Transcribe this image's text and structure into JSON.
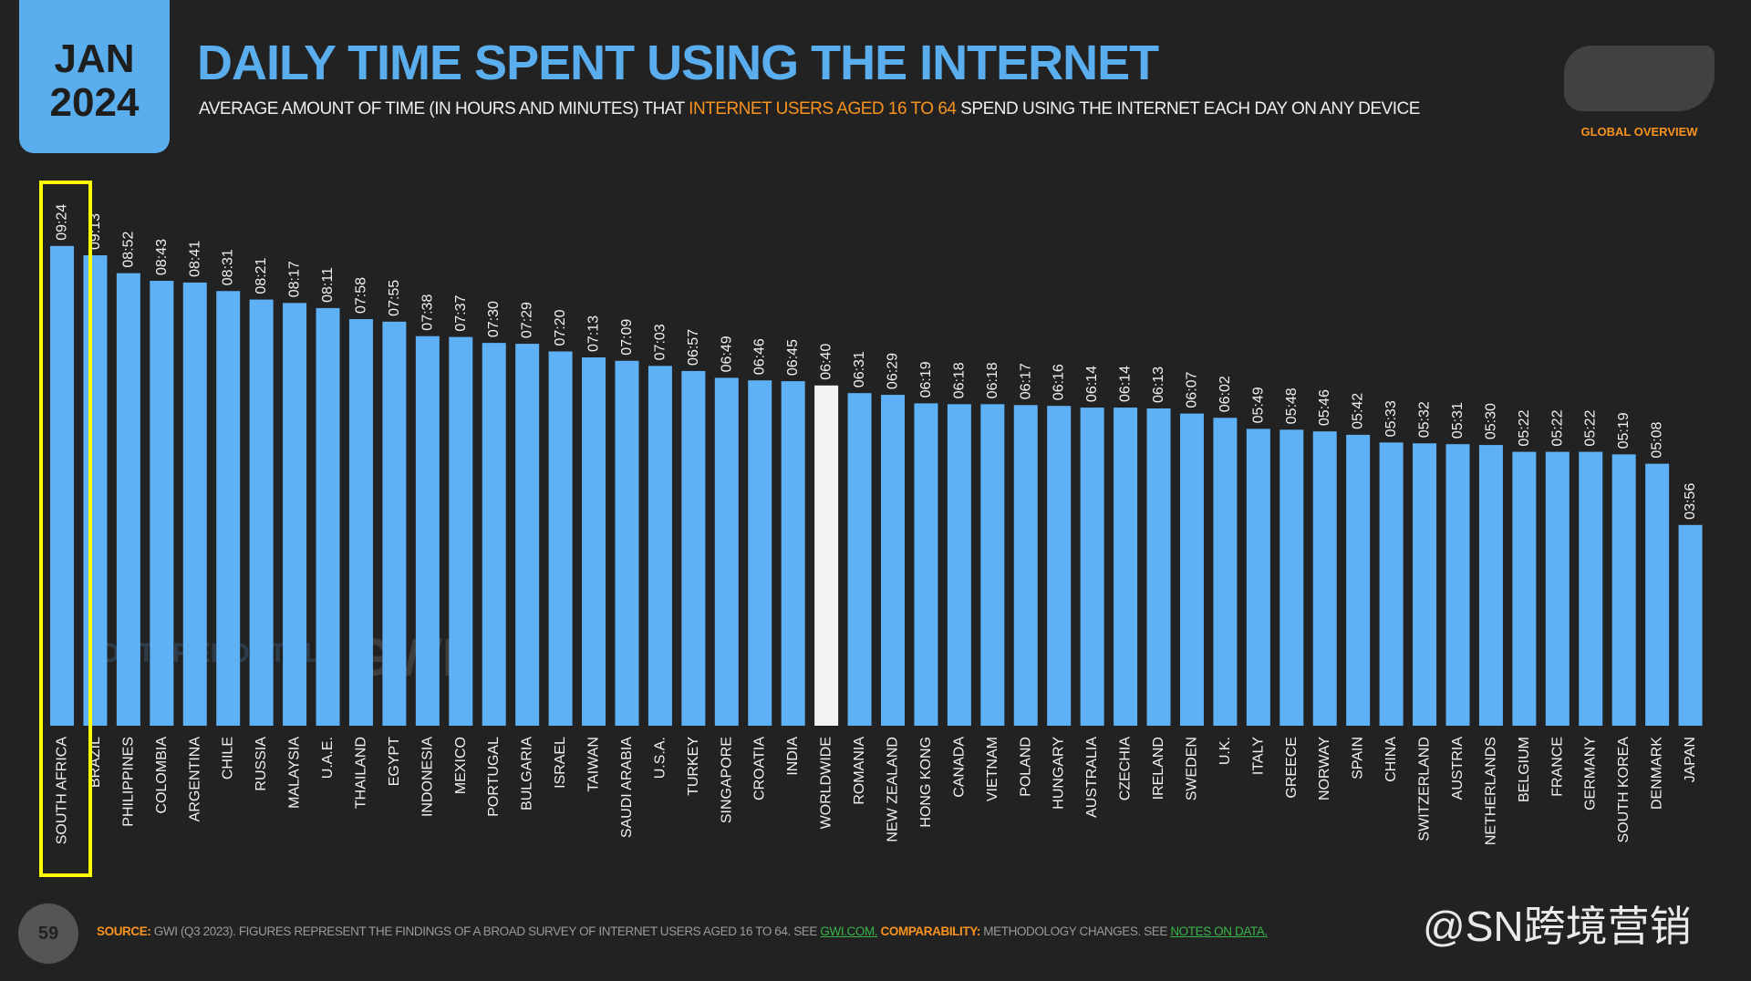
{
  "header": {
    "month": "JAN",
    "year": "2024",
    "corner_label": "GLOBAL OVERVIEW"
  },
  "chart_data": {
    "type": "bar",
    "title": "DAILY TIME SPENT USING THE INTERNET",
    "subtitle": [
      "AVERAGE AMOUNT OF TIME (IN HOURS AND MINUTES) THAT ",
      "INTERNET USERS AGED 16 TO 64",
      " SPEND USING THE INTERNET EACH DAY ON ANY DEVICE"
    ],
    "categories": [
      "SOUTH AFRICA",
      "BRAZIL",
      "PHILIPPINES",
      "COLOMBIA",
      "ARGENTINA",
      "CHILE",
      "RUSSIA",
      "MALAYSIA",
      "U.A.E.",
      "THAILAND",
      "EGYPT",
      "INDONESIA",
      "MEXICO",
      "PORTUGAL",
      "BULGARIA",
      "ISRAEL",
      "TAIWAN",
      "SAUDI ARABIA",
      "U.S.A.",
      "TURKEY",
      "SINGAPORE",
      "CROATIA",
      "INDIA",
      "WORLDWIDE",
      "ROMANIA",
      "NEW ZEALAND",
      "HONG KONG",
      "CANADA",
      "VIETNAM",
      "POLAND",
      "HUNGARY",
      "AUSTRALIA",
      "CZECHIA",
      "IRELAND",
      "SWEDEN",
      "U.K.",
      "ITALY",
      "GREECE",
      "NORWAY",
      "SPAIN",
      "CHINA",
      "SWITZERLAND",
      "AUSTRIA",
      "NETHERLANDS",
      "BELGIUM",
      "FRANCE",
      "GERMANY",
      "SOUTH KOREA",
      "DENMARK",
      "JAPAN"
    ],
    "values": [
      564,
      553,
      532,
      523,
      521,
      511,
      501,
      497,
      491,
      478,
      475,
      458,
      457,
      450,
      449,
      440,
      433,
      429,
      423,
      417,
      409,
      406,
      405,
      400,
      391,
      389,
      379,
      378,
      378,
      377,
      376,
      374,
      374,
      373,
      367,
      362,
      349,
      348,
      346,
      342,
      333,
      332,
      331,
      330,
      322,
      322,
      322,
      319,
      308,
      236
    ],
    "value_labels": [
      "09:24",
      "09:13",
      "08:52",
      "08:43",
      "08:41",
      "08:31",
      "08:21",
      "08:17",
      "08:11",
      "07:58",
      "07:55",
      "07:38",
      "07:37",
      "07:30",
      "07:29",
      "07:20",
      "07:13",
      "07:09",
      "07:03",
      "06:57",
      "06:49",
      "06:46",
      "06:45",
      "06:40",
      "06:31",
      "06:29",
      "06:19",
      "06:18",
      "06:18",
      "06:17",
      "06:16",
      "06:14",
      "06:14",
      "06:13",
      "06:07",
      "06:02",
      "05:49",
      "05:48",
      "05:46",
      "05:42",
      "05:33",
      "05:32",
      "05:31",
      "05:30",
      "05:22",
      "05:22",
      "05:22",
      "05:19",
      "05:08",
      "03:56"
    ],
    "colors": [
      "#5fb1f5",
      "#5fb1f5",
      "#5fb1f5",
      "#5fb1f5",
      "#5fb1f5",
      "#5fb1f5",
      "#5fb1f5",
      "#5fb1f5",
      "#5fb1f5",
      "#5fb1f5",
      "#5fb1f5",
      "#5fb1f5",
      "#5fb1f5",
      "#5fb1f5",
      "#5fb1f5",
      "#5fb1f5",
      "#5fb1f5",
      "#5fb1f5",
      "#5fb1f5",
      "#5fb1f5",
      "#5fb1f5",
      "#5fb1f5",
      "#5fb1f5",
      "#f2f2f2",
      "#5fb1f5",
      "#5fb1f5",
      "#5fb1f5",
      "#5fb1f5",
      "#5fb1f5",
      "#5fb1f5",
      "#5fb1f5",
      "#5fb1f5",
      "#5fb1f5",
      "#5fb1f5",
      "#5fb1f5",
      "#5fb1f5",
      "#5fb1f5",
      "#5fb1f5",
      "#5fb1f5",
      "#5fb1f5",
      "#5fb1f5",
      "#5fb1f5",
      "#5fb1f5",
      "#5fb1f5",
      "#5fb1f5",
      "#5fb1f5",
      "#5fb1f5",
      "#5fb1f5",
      "#5fb1f5",
      "#5fb1f5"
    ]
  },
  "footer": {
    "page": "59",
    "source_label": "SOURCE:",
    "source_text": " GWI (Q3 2023). FIGURES REPRESENT THE FINDINGS OF A BROAD SURVEY OF INTERNET USERS AGED 16 TO 64. SEE ",
    "source_link": "GWI.COM.",
    "comparability_label": " COMPARABILITY:",
    "comparability_text": " METHODOLOGY CHANGES. SEE ",
    "comparability_link": "NOTES ON DATA."
  },
  "watermarks": [
    "DATAREPORTAL",
    "GWI.",
    "@SN跨境营销"
  ]
}
